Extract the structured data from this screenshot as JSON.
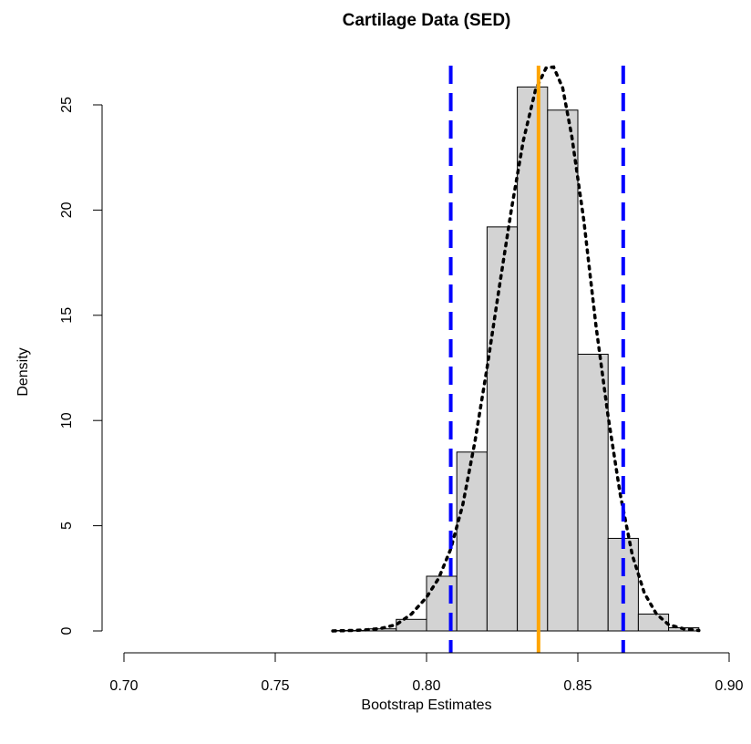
{
  "chart_data": {
    "type": "bar",
    "title": "Cartilage Data (SED)",
    "xlabel": "Bootstrap Estimates",
    "ylabel": "Density",
    "xlim": [
      0.7,
      0.9
    ],
    "ylim": [
      0,
      26.5
    ],
    "x_ticks": [
      0.7,
      0.75,
      0.8,
      0.85,
      0.9
    ],
    "x_tick_labels": [
      "0.70",
      "0.75",
      "0.80",
      "0.85",
      "0.90"
    ],
    "y_ticks": [
      0,
      5,
      10,
      15,
      20,
      25
    ],
    "y_tick_labels": [
      "0",
      "5",
      "10",
      "15",
      "20",
      "25"
    ],
    "grid": false,
    "histogram": {
      "bins": [
        {
          "start": 0.77,
          "end": 0.78,
          "density": 0.02
        },
        {
          "start": 0.78,
          "end": 0.79,
          "density": 0.1
        },
        {
          "start": 0.79,
          "end": 0.8,
          "density": 0.55
        },
        {
          "start": 0.8,
          "end": 0.81,
          "density": 2.6
        },
        {
          "start": 0.81,
          "end": 0.82,
          "density": 8.5
        },
        {
          "start": 0.82,
          "end": 0.83,
          "density": 19.2
        },
        {
          "start": 0.83,
          "end": 0.84,
          "density": 25.85
        },
        {
          "start": 0.84,
          "end": 0.85,
          "density": 24.75
        },
        {
          "start": 0.85,
          "end": 0.86,
          "density": 13.15
        },
        {
          "start": 0.86,
          "end": 0.87,
          "density": 4.4
        },
        {
          "start": 0.87,
          "end": 0.88,
          "density": 0.8
        },
        {
          "start": 0.88,
          "end": 0.89,
          "density": 0.15
        }
      ],
      "fill": "#d3d3d3",
      "stroke": "#000000"
    },
    "density_curve": {
      "points": [
        [
          0.769,
          0.0
        ],
        [
          0.775,
          0.02
        ],
        [
          0.78,
          0.05
        ],
        [
          0.785,
          0.12
        ],
        [
          0.79,
          0.3
        ],
        [
          0.795,
          0.8
        ],
        [
          0.8,
          1.6
        ],
        [
          0.804,
          2.5
        ],
        [
          0.808,
          3.9
        ],
        [
          0.812,
          6.0
        ],
        [
          0.816,
          9.0
        ],
        [
          0.82,
          12.5
        ],
        [
          0.824,
          16.3
        ],
        [
          0.828,
          20.0
        ],
        [
          0.832,
          23.3
        ],
        [
          0.836,
          25.7
        ],
        [
          0.8395,
          26.75
        ],
        [
          0.842,
          26.8
        ],
        [
          0.845,
          25.8
        ],
        [
          0.848,
          23.5
        ],
        [
          0.852,
          19.5
        ],
        [
          0.856,
          14.5
        ],
        [
          0.86,
          10.2
        ],
        [
          0.864,
          6.5
        ],
        [
          0.868,
          3.6
        ],
        [
          0.872,
          1.8
        ],
        [
          0.876,
          0.8
        ],
        [
          0.88,
          0.3
        ],
        [
          0.885,
          0.1
        ],
        [
          0.89,
          0.02
        ]
      ],
      "color": "#000000",
      "style": "dotted"
    },
    "vertical_lines": [
      {
        "x": 0.808,
        "color": "#0000ff",
        "style": "dashed"
      },
      {
        "x": 0.837,
        "color": "#ffa500",
        "style": "solid"
      },
      {
        "x": 0.865,
        "color": "#0000ff",
        "style": "dashed"
      }
    ]
  }
}
